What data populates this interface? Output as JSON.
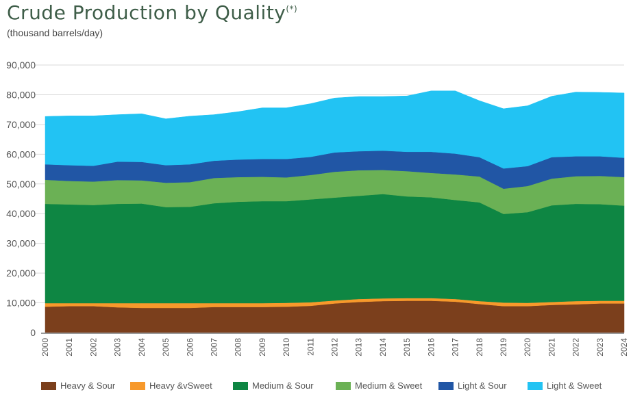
{
  "chart_data": {
    "type": "area",
    "stacked": true,
    "title": "Crude Production by Quality",
    "title_superscript": "(*)",
    "subtitle": "(thousand barrels/day)",
    "xlabel": "",
    "ylabel": "(thousand barrels/day)",
    "ylim": [
      0,
      90000
    ],
    "yticks": [
      0,
      10000,
      20000,
      30000,
      40000,
      50000,
      60000,
      70000,
      80000,
      90000
    ],
    "ytick_labels": [
      "0",
      "10,000",
      "20,000",
      "30,000",
      "40,000",
      "50,000",
      "60,000",
      "70,000",
      "80,000",
      "90,000"
    ],
    "grid": true,
    "legend_position": "bottom",
    "x": [
      "2000",
      "2001",
      "2002",
      "2003",
      "2004",
      "2005",
      "2006",
      "2007",
      "2008",
      "2009",
      "2010",
      "2011",
      "2012",
      "2013",
      "2014",
      "2015",
      "2016",
      "2017",
      "2018",
      "2019",
      "2020",
      "2021",
      "2022",
      "2023",
      "2024"
    ],
    "series": [
      {
        "name": "Heavy & Sour",
        "color": "#7b3f1c",
        "values": [
          8700,
          8900,
          8900,
          8500,
          8300,
          8300,
          8300,
          8600,
          8600,
          8600,
          8700,
          9000,
          9800,
          10300,
          10600,
          10700,
          10700,
          10400,
          9600,
          8900,
          8900,
          9300,
          9500,
          9800,
          9800
        ]
      },
      {
        "name": "Heavy &vSweet",
        "color": "#f7992b",
        "values": [
          1200,
          1000,
          1000,
          1400,
          1600,
          1600,
          1600,
          1300,
          1300,
          1300,
          1300,
          1200,
          1000,
          1000,
          900,
          900,
          900,
          900,
          1000,
          1200,
          1100,
          1000,
          1100,
          900,
          900
        ]
      },
      {
        "name": "Medium & Sour",
        "color": "#0e8643",
        "values": [
          33400,
          33200,
          33000,
          33400,
          33500,
          32300,
          32400,
          33600,
          34100,
          34300,
          34200,
          34600,
          34600,
          34700,
          35100,
          34200,
          33900,
          33300,
          33200,
          29800,
          30500,
          32500,
          32700,
          32500,
          32000
        ]
      },
      {
        "name": "Medium & Sweet",
        "color": "#6bb155",
        "values": [
          8100,
          7900,
          7900,
          8000,
          7800,
          8200,
          8300,
          8500,
          8300,
          8200,
          8000,
          8200,
          8700,
          8600,
          8100,
          8500,
          8200,
          8600,
          8700,
          8500,
          8800,
          9000,
          9300,
          9500,
          9600
        ]
      },
      {
        "name": "Light & Sour",
        "color": "#2156a5",
        "values": [
          5200,
          5300,
          5300,
          6200,
          6200,
          5900,
          6000,
          5800,
          5900,
          6000,
          6200,
          6100,
          6500,
          6400,
          6500,
          6500,
          7100,
          7000,
          6500,
          6800,
          6700,
          7200,
          6700,
          6600,
          6500
        ]
      },
      {
        "name": "Light & Sweet",
        "color": "#22c3f3",
        "values": [
          16100,
          16600,
          16800,
          15800,
          16200,
          15600,
          16200,
          15500,
          16100,
          17200,
          17200,
          17900,
          18300,
          18400,
          18200,
          18800,
          20500,
          21100,
          19000,
          20100,
          20300,
          20500,
          21600,
          21500,
          21800
        ]
      }
    ]
  }
}
